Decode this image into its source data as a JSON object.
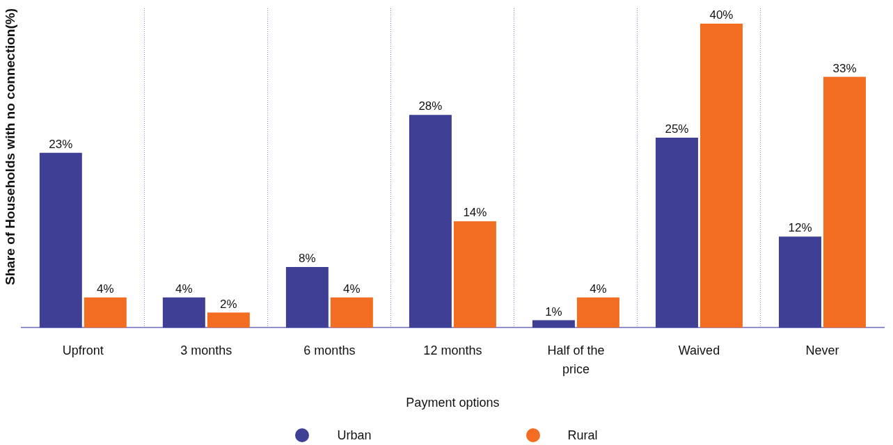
{
  "chart_data": {
    "type": "bar",
    "xlabel": "Payment options",
    "ylabel": "Share of Households with no connection(%)",
    "categories": [
      "Upfront",
      "3 months",
      "6 months",
      "12 months",
      "Half of the price",
      "Waived",
      "Never"
    ],
    "series": [
      {
        "name": "Urban",
        "color": "#3f4095",
        "values": [
          23,
          4,
          8,
          28,
          1,
          25,
          12
        ],
        "value_labels": [
          "23%",
          "4%",
          "8%",
          "28%",
          "1%",
          "25%",
          "12%"
        ]
      },
      {
        "name": "Rural",
        "color": "#f26d21",
        "values": [
          4,
          2,
          4,
          14,
          4,
          40,
          33
        ],
        "value_labels": [
          "4%",
          "2%",
          "4%",
          "14%",
          "4%",
          "40%",
          "33%"
        ]
      }
    ],
    "grid": "x",
    "legend": "bottom",
    "tick_labels": "x"
  }
}
